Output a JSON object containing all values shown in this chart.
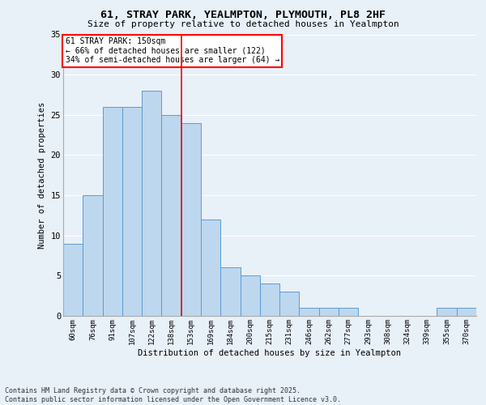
{
  "title1": "61, STRAY PARK, YEALMPTON, PLYMOUTH, PL8 2HF",
  "title2": "Size of property relative to detached houses in Yealmpton",
  "xlabel": "Distribution of detached houses by size in Yealmpton",
  "ylabel": "Number of detached properties",
  "categories": [
    "60sqm",
    "76sqm",
    "91sqm",
    "107sqm",
    "122sqm",
    "138sqm",
    "153sqm",
    "169sqm",
    "184sqm",
    "200sqm",
    "215sqm",
    "231sqm",
    "246sqm",
    "262sqm",
    "277sqm",
    "293sqm",
    "308sqm",
    "324sqm",
    "339sqm",
    "355sqm",
    "370sqm"
  ],
  "values": [
    9,
    15,
    26,
    26,
    28,
    25,
    24,
    12,
    6,
    5,
    4,
    3,
    1,
    1,
    1,
    0,
    0,
    0,
    0,
    1,
    1
  ],
  "bar_color": "#BDD7EE",
  "bar_edge_color": "#5B9BD5",
  "bg_color": "#E8F0F8",
  "grid_color": "#FFFFFF",
  "vline_x": 5.5,
  "vline_color": "red",
  "annotation_title": "61 STRAY PARK: 150sqm",
  "annotation_line2": "← 66% of detached houses are smaller (122)",
  "annotation_line3": "34% of semi-detached houses are larger (64) →",
  "annotation_box_color": "white",
  "annotation_box_edge": "red",
  "ylim": [
    0,
    35
  ],
  "yticks": [
    0,
    5,
    10,
    15,
    20,
    25,
    30,
    35
  ],
  "footnote1": "Contains HM Land Registry data © Crown copyright and database right 2025.",
  "footnote2": "Contains public sector information licensed under the Open Government Licence v3.0."
}
